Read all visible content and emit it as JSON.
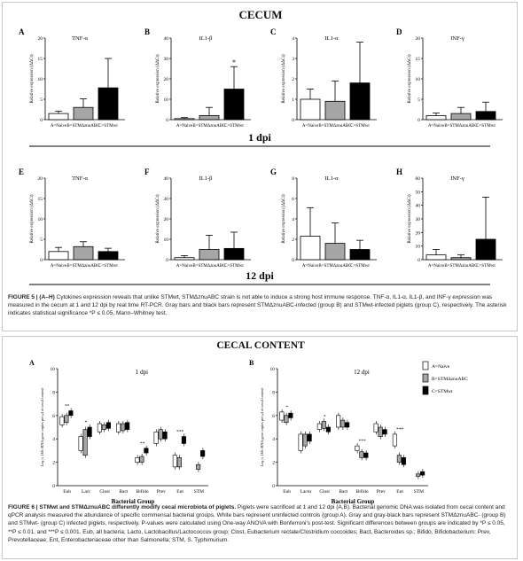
{
  "fig5": {
    "section_title": "CECUM",
    "row1_label": "1 dpi",
    "row2_label": "12 dpi",
    "ylabel": "Relative expression (ΔΔCt)",
    "categories": [
      "A=Naive",
      "B=STMΔznuABC",
      "C=STMwt"
    ],
    "asterisk": "*",
    "caption": {
      "label": "FIGURE 5 | (A–H)",
      "text": " Cytokines expression reveals that unlike STMwt, STMΔznuABC strain is not able to induce a strong host immune response. TNF-α, IL1-α, IL1-β, and INF-γ expression was measured in the cecum at 1 and 12 dpi by real time RT-PCR. Gray bars and black bars represent STMΔznuABC-infected (group B) and STMwt-infected piglets (group C), respectively. The asterisk indicates statistical significance *P ≤ 0.05, Mann–Whitney test."
    }
  },
  "chart_data": [
    {
      "type": "bar",
      "panel": "A",
      "title": "TNF-α",
      "ylabel": "Relative expression (ΔΔCt)",
      "ylim": [
        0,
        20
      ],
      "yticks": [
        0,
        5,
        10,
        15,
        20
      ],
      "categories": [
        "A=Naive",
        "B=STMΔznuABC",
        "C=STMwt"
      ],
      "values": [
        1.5,
        3.0,
        7.8
      ],
      "errors": [
        0.6,
        2.1,
        7.2
      ],
      "colors": [
        "#ffffff",
        "#a6a6a6",
        "#000000"
      ]
    },
    {
      "type": "bar",
      "panel": "B",
      "title": "IL1-β",
      "ylabel": "Relative expression (ΔΔCt)",
      "ylim": [
        0,
        40
      ],
      "yticks": [
        0,
        10,
        20,
        30,
        40
      ],
      "categories": [
        "A=Naive",
        "B=STMΔznuABC",
        "C=STMwt"
      ],
      "values": [
        0.5,
        2.0,
        15.0
      ],
      "errors": [
        0.5,
        4.0,
        11.0
      ],
      "colors": [
        "#ffffff",
        "#a6a6a6",
        "#000000"
      ],
      "annotation": "*"
    },
    {
      "type": "bar",
      "panel": "C",
      "title": "IL1-α",
      "ylabel": "Relative expression (ΔΔCt)",
      "ylim": [
        0,
        4
      ],
      "yticks": [
        0,
        1,
        2,
        3,
        4
      ],
      "categories": [
        "A=Naive",
        "B=STMΔznuABC",
        "C=STMwt"
      ],
      "values": [
        1.0,
        0.9,
        1.8
      ],
      "errors": [
        0.5,
        1.0,
        2.0
      ],
      "colors": [
        "#ffffff",
        "#a6a6a6",
        "#000000"
      ]
    },
    {
      "type": "bar",
      "panel": "D",
      "title": "INF-γ",
      "ylabel": "Relative expression (ΔΔCt)",
      "ylim": [
        0,
        20
      ],
      "yticks": [
        0,
        5,
        10,
        15,
        20
      ],
      "categories": [
        "A=Naive",
        "B=STMΔznuABC",
        "C=STMwt"
      ],
      "values": [
        1.0,
        1.5,
        2.0
      ],
      "errors": [
        0.6,
        1.5,
        2.3
      ],
      "colors": [
        "#ffffff",
        "#a6a6a6",
        "#000000"
      ]
    },
    {
      "type": "bar",
      "panel": "E",
      "title": "TNF-α",
      "ylabel": "Relative expression (ΔΔCt)",
      "ylim": [
        0,
        20
      ],
      "yticks": [
        0,
        5,
        10,
        15,
        20
      ],
      "categories": [
        "A=Naive",
        "B=STMΔznuABC",
        "C=STMwt"
      ],
      "values": [
        2.0,
        3.2,
        2.0
      ],
      "errors": [
        1.0,
        1.2,
        0.8
      ],
      "colors": [
        "#ffffff",
        "#a6a6a6",
        "#000000"
      ]
    },
    {
      "type": "bar",
      "panel": "F",
      "title": "IL1-β",
      "ylabel": "Relative expression (ΔΔCt)",
      "ylim": [
        0,
        40
      ],
      "yticks": [
        0,
        10,
        20,
        30,
        40
      ],
      "categories": [
        "A=Naive",
        "B=STMΔznuABC",
        "C=STMwt"
      ],
      "values": [
        1.0,
        5.0,
        5.5
      ],
      "errors": [
        1.0,
        7.0,
        8.0
      ],
      "colors": [
        "#ffffff",
        "#a6a6a6",
        "#000000"
      ]
    },
    {
      "type": "bar",
      "panel": "G",
      "title": "IL1-α",
      "ylabel": "Relative expression (ΔΔCt)",
      "ylim": [
        0,
        8
      ],
      "yticks": [
        0,
        2,
        4,
        6,
        8
      ],
      "categories": [
        "A=Naive",
        "B=STMΔznuABC",
        "C=STMwt"
      ],
      "values": [
        2.3,
        1.6,
        1.0
      ],
      "errors": [
        2.8,
        2.0,
        0.9
      ],
      "colors": [
        "#ffffff",
        "#a6a6a6",
        "#000000"
      ]
    },
    {
      "type": "bar",
      "panel": "H",
      "title": "INF-γ",
      "ylabel": "Relative expression (ΔΔCt)",
      "ylim": [
        0,
        60
      ],
      "yticks": [
        0,
        10,
        20,
        30,
        40,
        50,
        60
      ],
      "categories": [
        "A=Naive",
        "B=STMΔznuABC",
        "C=STMwt"
      ],
      "values": [
        3.5,
        1.5,
        15.0
      ],
      "errors": [
        4.0,
        2.0,
        31.0
      ],
      "colors": [
        "#ffffff",
        "#a6a6a6",
        "#000000"
      ]
    },
    {
      "type": "box",
      "panel": "A",
      "title": "1 dpi",
      "xlabel": "Bacterial Group",
      "ylabel": "Log n. 16S rRNA gene copies per μl of cecal content",
      "ylim": [
        0,
        10
      ],
      "yticks": [
        0,
        2,
        4,
        6,
        8,
        10
      ],
      "categories": [
        "Eub",
        "Lact",
        "Clost",
        "Bact",
        "Bifido",
        "Prev",
        "Ent",
        "STM"
      ],
      "series": [
        {
          "name": "A=Naive",
          "color": "#ffffff",
          "boxes": [
            [
              5.2,
              5.9
            ],
            [
              3.0,
              4.2
            ],
            [
              4.6,
              5.3
            ],
            [
              4.6,
              5.3
            ],
            [
              2.0,
              2.4
            ],
            [
              3.6,
              4.6
            ],
            [
              1.6,
              2.6
            ],
            null
          ]
        },
        {
          "name": "B=STMΔznuABC",
          "color": "#a6a6a6",
          "boxes": [
            [
              5.4,
              6.0
            ],
            [
              2.6,
              4.8
            ],
            [
              4.8,
              5.2
            ],
            [
              4.7,
              5.3
            ],
            [
              2.0,
              2.5
            ],
            [
              4.0,
              4.8
            ],
            [
              1.6,
              2.4
            ],
            [
              1.4,
              1.8
            ]
          ]
        },
        {
          "name": "C=STMwt",
          "color": "#000000",
          "boxes": [
            [
              6.0,
              6.4
            ],
            [
              4.2,
              5.0
            ],
            [
              4.9,
              5.4
            ],
            [
              4.8,
              5.4
            ],
            [
              2.8,
              3.2
            ],
            [
              4.0,
              4.6
            ],
            [
              3.6,
              4.2
            ],
            [
              2.5,
              3.0
            ]
          ]
        }
      ],
      "significance": [
        "**",
        "*",
        "",
        "",
        "**",
        "",
        "***",
        ""
      ]
    },
    {
      "type": "box",
      "panel": "B",
      "title": "12 dpi",
      "xlabel": "Bacterial Group",
      "ylabel": "Log n. 16S rRNA gene copies per μl of cecal content",
      "ylim": [
        0,
        10
      ],
      "yticks": [
        0,
        2,
        4,
        6,
        8,
        10
      ],
      "categories": [
        "Eub",
        "Lacto",
        "Clost",
        "Bact",
        "Bifido",
        "Prev",
        "Ent",
        "STM"
      ],
      "series": [
        {
          "name": "A=Naive",
          "color": "#ffffff",
          "boxes": [
            [
              5.6,
              6.3
            ],
            [
              3.0,
              4.4
            ],
            [
              4.8,
              5.3
            ],
            [
              5.0,
              6.0
            ],
            [
              3.0,
              3.4
            ],
            [
              4.6,
              5.3
            ],
            [
              3.4,
              4.4
            ],
            null
          ]
        },
        {
          "name": "B=STMΔznuABC",
          "color": "#a6a6a6",
          "boxes": [
            [
              5.4,
              6.0
            ],
            [
              3.4,
              4.4
            ],
            [
              4.9,
              5.5
            ],
            [
              5.0,
              5.6
            ],
            [
              2.4,
              2.9
            ],
            [
              4.2,
              5.0
            ],
            [
              2.0,
              2.6
            ],
            [
              0.8,
              1.0
            ]
          ]
        },
        {
          "name": "C=STMwt",
          "color": "#000000",
          "boxes": [
            [
              5.8,
              6.2
            ],
            [
              3.8,
              4.4
            ],
            [
              4.6,
              5.0
            ],
            [
              5.0,
              5.4
            ],
            [
              2.4,
              2.8
            ],
            [
              4.4,
              4.8
            ],
            [
              1.8,
              2.4
            ],
            [
              0.9,
              1.2
            ]
          ]
        }
      ],
      "significance": [
        "*",
        "",
        "*",
        "",
        "***",
        "",
        "***",
        ""
      ]
    }
  ],
  "fig6": {
    "section_title": "CECAL CONTENT",
    "panel_a_label": "A",
    "panel_b_label": "B",
    "legend": [
      "A=Naive",
      "B=STMΔznuABC",
      "C=STMwt"
    ],
    "caption": {
      "label": "FIGURE 6 | STMwt and STMΔznuABC differently modify cecal microbiota of piglets.",
      "text": " Piglets were sacrificed at 1 and 12 dpi (A,B). Bacterial genomic DNA was isolated from cecal content and qPCR analysis measured the abundance of specific commensal bacterial groups. White bars represent uninfected controls (group A). Gray and gray-black bars represent STMΔznuABC- (group B) and STMwt- (group C) infected piglets, respectively. P-values were calculated using One-way ANOVA with Bonferroni's post-test. Significant differences between groups are indicated by *P ≤ 0.05, **P ≤ 0.01, and ***P ≤ 0.001. Eub, all bacteria; Lacto, Lactobacillus/Lactococcus group; Clost, Eubacterium rectale/Clostridium coccoides; Bact, Bacteroides sp.; Bifido, Bifidobacterium; Prev, Prevotellaceae; Ent, Enterobacteriaceae other than Salmonella; STM, S. Typhimurium."
    }
  }
}
